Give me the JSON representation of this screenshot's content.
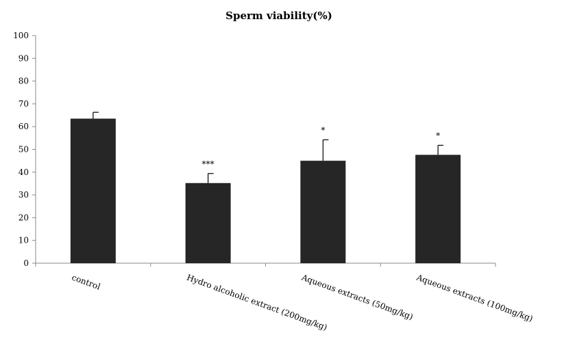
{
  "chart_data": {
    "type": "bar",
    "title": "Sperm viability(%)",
    "xlabel": "",
    "ylabel": "",
    "ylim": [
      0,
      100
    ],
    "yticks": [
      0,
      10,
      20,
      30,
      40,
      50,
      60,
      70,
      80,
      90,
      100
    ],
    "grid": false,
    "legend": "none",
    "bar_color": "#262626",
    "categories": [
      "control",
      "Hydro alcoholic extract (200mg/kg)",
      "Aqueous extracts (50mg/kg)",
      "Aqueous extracts (100mg/kg)"
    ],
    "values": [
      63.5,
      35.2,
      45.0,
      47.6
    ],
    "error_bars": [
      2.8,
      4.2,
      9.2,
      4.2
    ],
    "annotations": [
      "",
      "***",
      "*",
      "*"
    ]
  }
}
